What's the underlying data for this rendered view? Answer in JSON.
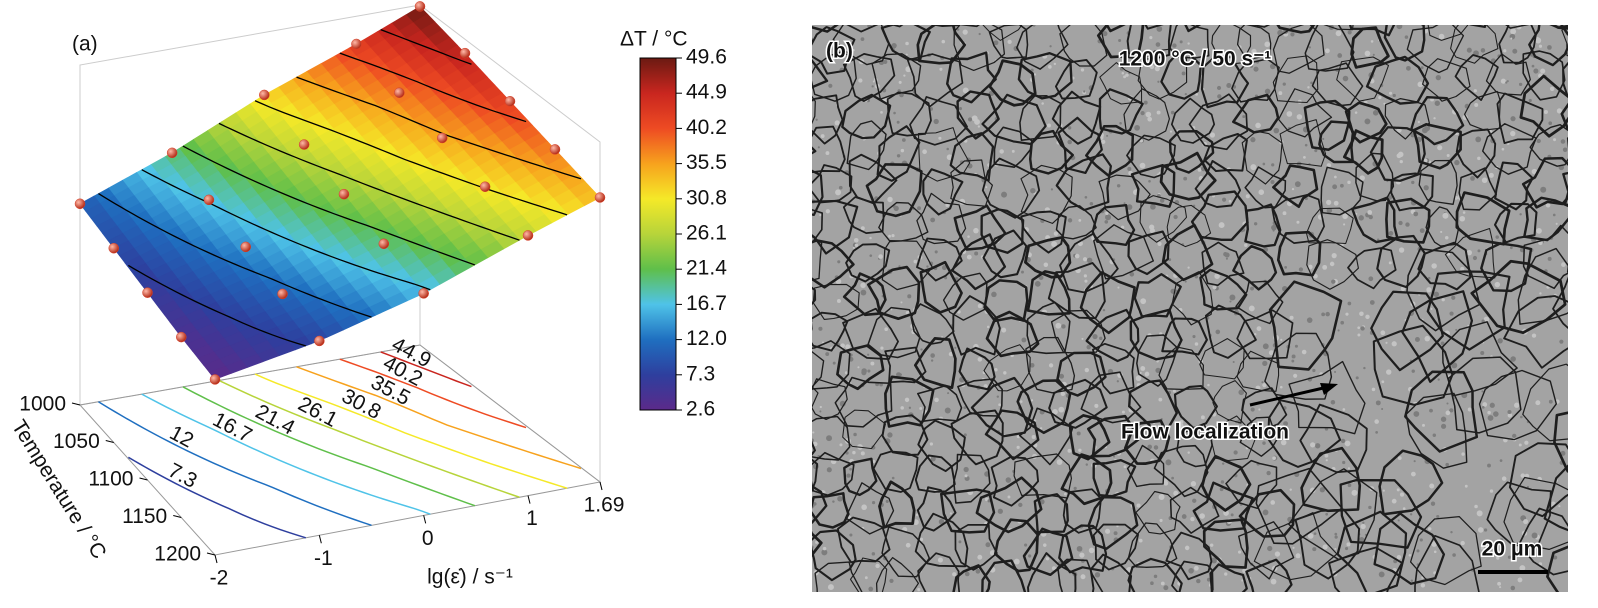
{
  "chart_data": {
    "type": "surface3d",
    "panel_label": "(a)",
    "colorbar_title": "ΔT / °C",
    "x_label": "lg(ε̇) / s⁻¹",
    "y_label": "Temperature / °C",
    "x": [
      -2,
      -1,
      0,
      1,
      1.69
    ],
    "y": [
      1000,
      1050,
      1100,
      1150,
      1200
    ],
    "z": [
      [
        10,
        20,
        32,
        42,
        49.6
      ],
      [
        8,
        17,
        28,
        38,
        46
      ],
      [
        6,
        14,
        24,
        35,
        42
      ],
      [
        4,
        11,
        20,
        31,
        38
      ],
      [
        2.6,
        8,
        16,
        27,
        34
      ]
    ],
    "xlim": [
      -2,
      1.69
    ],
    "ylim": [
      1000,
      1200
    ],
    "zlim": [
      -48,
      50
    ],
    "xticks": [
      -2,
      -1,
      0,
      1,
      1.69
    ],
    "yticks": [
      1000,
      1050,
      1100,
      1150,
      1200
    ],
    "colorbar_ticks": [
      2.6,
      7.3,
      {
        "value": 12,
        "label": "12.0"
      },
      16.7,
      21.4,
      26.1,
      30.8,
      35.5,
      40.2,
      44.9,
      49.6
    ],
    "contour_levels": [
      7.3,
      12,
      16.7,
      21.4,
      26.1,
      30.8,
      35.5,
      40.2,
      44.9
    ],
    "colormap": [
      "#5b2a8a",
      "#2e3f9e",
      "#1f6fc0",
      "#4fc3e8",
      "#5fbf4a",
      "#b7d43a",
      "#f5e928",
      "#f7a21d",
      "#ee4b23",
      "#c9261f",
      "#6b1a12"
    ],
    "point_color": "#d8412a",
    "contour_color": "#000000"
  },
  "panel_b": {
    "label": "(b)",
    "condition": "1200 °C / 50 s⁻¹",
    "annotation": "Flow localization",
    "scale_bar": "20 μm"
  }
}
